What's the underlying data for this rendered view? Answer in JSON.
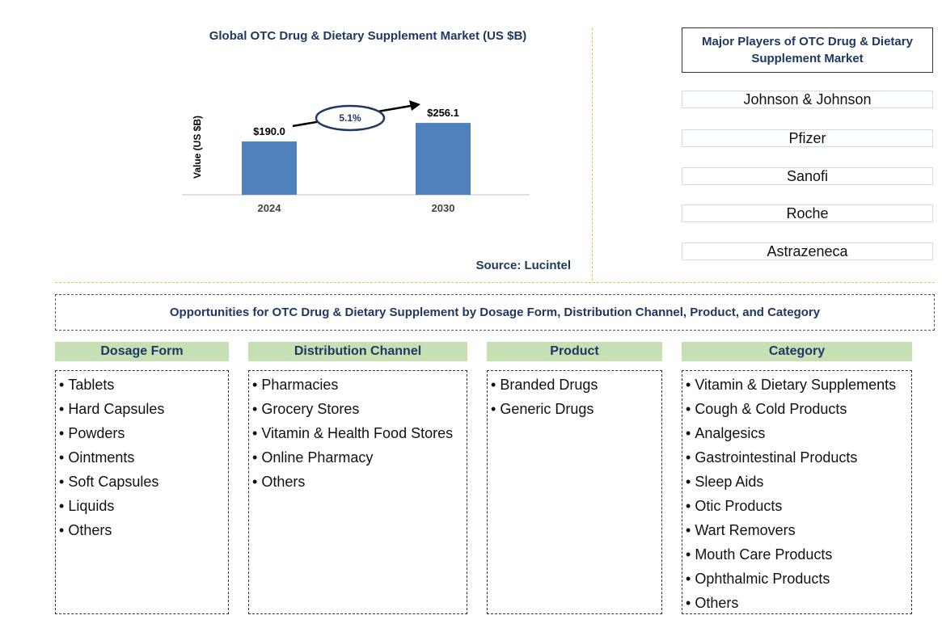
{
  "chart_data": {
    "type": "bar",
    "title": "Global OTC Drug & Dietary Supplement Market (US $B)",
    "ylabel": "Value (US $B)",
    "xlabel": "",
    "categories": [
      "2024",
      "2030"
    ],
    "values": [
      190.0,
      256.1
    ],
    "data_labels": [
      "$190.0",
      "$256.1"
    ],
    "bar_color": "#4f81bd",
    "ylim": [
      0,
      360
    ],
    "annotation": {
      "text": "5.1%",
      "type": "cagr-arrow"
    },
    "grid": false
  },
  "source": "Source: Lucintel",
  "players": {
    "title": "Major Players of OTC Drug & Dietary Supplement Market",
    "items": [
      "Johnson & Johnson",
      "Pfizer",
      "Sanofi",
      "Roche",
      "Astrazeneca"
    ]
  },
  "opportunities": {
    "title": "Opportunities for OTC Drug & Dietary Supplement by Dosage Form, Distribution Channel, Product, and Category",
    "columns": [
      {
        "header": "Dosage Form",
        "items": [
          "Tablets",
          "Hard Capsules",
          "Powders",
          "Ointments",
          "Soft Capsules",
          "Liquids",
          "Others"
        ]
      },
      {
        "header": "Distribution Channel",
        "items": [
          "Pharmacies",
          "Grocery Stores",
          "Vitamin & Health Food Stores",
          "Online Pharmacy",
          "Others"
        ]
      },
      {
        "header": "Product",
        "items": [
          "Branded Drugs",
          "Generic Drugs"
        ]
      },
      {
        "header": "Category",
        "items": [
          "Vitamin & Dietary Supplements",
          "Cough & Cold Products",
          "Analgesics",
          "Gastrointestinal Products",
          "Sleep Aids",
          "Otic Products",
          "Wart Removers",
          "Mouth Care Products",
          "Ophthalmic Products",
          "Others"
        ]
      }
    ]
  },
  "colors": {
    "header_green": "#c6e0b4",
    "title_navy": "#1f3864",
    "divider_gold": "#e8c24a"
  }
}
